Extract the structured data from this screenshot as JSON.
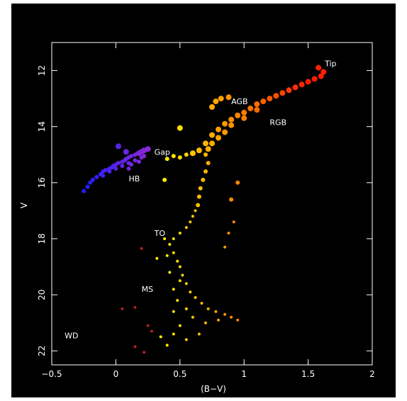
{
  "chart_data": {
    "type": "scatter",
    "title": "",
    "xlabel": "(B−V)",
    "ylabel": "V",
    "xlim": [
      -0.5,
      2
    ],
    "ylim": [
      22.5,
      11
    ],
    "y_inverted": true,
    "x_ticks": [
      "−0.5",
      "0",
      "0.5",
      "1",
      "1.5",
      "2"
    ],
    "x_tick_values": [
      -0.5,
      0,
      0.5,
      1,
      1.5,
      2
    ],
    "y_ticks": [
      "12",
      "14",
      "16",
      "18",
      "20",
      "22"
    ],
    "y_tick_values": [
      12,
      14,
      16,
      18,
      20,
      22
    ],
    "grid": false,
    "colors": {
      "background": "#000000",
      "axes": "#ffffff",
      "text": "#ffffff",
      "color_scale": [
        "#1a1aff",
        "#8a2be2",
        "#ffff00",
        "#ffa500",
        "#ff2000"
      ]
    },
    "annotations": [
      {
        "text": "Tip",
        "x": 1.63,
        "y": 11.85
      },
      {
        "text": "AGB",
        "x": 0.9,
        "y": 13.2
      },
      {
        "text": "RGB",
        "x": 1.2,
        "y": 13.95
      },
      {
        "text": "Gap",
        "x": 0.3,
        "y": 15.0
      },
      {
        "text": "HB",
        "x": 0.1,
        "y": 15.95
      },
      {
        "text": "TO",
        "x": 0.3,
        "y": 17.9
      },
      {
        "text": "MS",
        "x": 0.2,
        "y": 19.9
      },
      {
        "text": "WD",
        "x": -0.4,
        "y": 21.55
      }
    ],
    "series": [
      {
        "points": [
          [
            -0.25,
            16.3
          ],
          [
            -0.2,
            16.0
          ],
          [
            -0.22,
            16.15
          ],
          [
            -0.18,
            15.9
          ],
          [
            -0.15,
            15.8
          ],
          [
            -0.12,
            15.7
          ],
          [
            -0.1,
            15.6
          ],
          [
            -0.08,
            15.55
          ],
          [
            -0.05,
            15.5
          ],
          [
            -0.02,
            15.4
          ],
          [
            0.0,
            15.35
          ],
          [
            0.02,
            15.3
          ],
          [
            0.05,
            15.25
          ],
          [
            0.07,
            15.2
          ],
          [
            0.1,
            15.1
          ],
          [
            0.12,
            15.05
          ],
          [
            0.15,
            15.0
          ],
          [
            0.18,
            14.95
          ],
          [
            0.2,
            14.9
          ],
          [
            0.22,
            14.85
          ],
          [
            0.25,
            14.8
          ],
          [
            0.05,
            15.4
          ],
          [
            0.0,
            15.5
          ],
          [
            -0.05,
            15.6
          ],
          [
            0.1,
            15.3
          ],
          [
            0.15,
            15.2
          ],
          [
            0.2,
            15.1
          ],
          [
            0.08,
            15.15
          ],
          [
            0.12,
            15.35
          ],
          [
            -0.1,
            15.75
          ],
          [
            0.02,
            14.7
          ],
          [
            0.1,
            15.5
          ],
          [
            0.18,
            15.25
          ],
          [
            -0.03,
            15.45
          ],
          [
            0.22,
            15.05
          ],
          [
            0.08,
            14.9
          ],
          [
            0.45,
            15.05
          ],
          [
            0.5,
            15.1
          ],
          [
            0.55,
            15.0
          ],
          [
            0.4,
            15.15
          ],
          [
            0.6,
            14.95
          ],
          [
            0.65,
            14.85
          ],
          [
            0.5,
            14.05
          ],
          [
            0.38,
            15.9
          ],
          [
            0.7,
            14.6
          ],
          [
            0.75,
            14.3
          ],
          [
            0.8,
            14.1
          ],
          [
            0.85,
            13.9
          ],
          [
            0.9,
            13.75
          ],
          [
            0.95,
            13.6
          ],
          [
            1.0,
            13.5
          ],
          [
            1.05,
            13.35
          ],
          [
            1.1,
            13.2
          ],
          [
            1.15,
            13.1
          ],
          [
            1.2,
            13.0
          ],
          [
            1.25,
            12.9
          ],
          [
            1.3,
            12.8
          ],
          [
            1.35,
            12.7
          ],
          [
            1.4,
            12.6
          ],
          [
            1.45,
            12.5
          ],
          [
            1.5,
            12.4
          ],
          [
            1.55,
            12.3
          ],
          [
            1.6,
            12.2
          ],
          [
            1.62,
            12.05
          ],
          [
            1.58,
            11.9
          ],
          [
            1.1,
            13.4
          ],
          [
            1.0,
            13.7
          ],
          [
            0.9,
            13.95
          ],
          [
            0.85,
            14.2
          ],
          [
            0.8,
            14.4
          ],
          [
            0.75,
            14.6
          ],
          [
            0.72,
            14.8
          ],
          [
            0.7,
            15.0
          ],
          [
            0.75,
            13.3
          ],
          [
            0.78,
            13.1
          ],
          [
            0.82,
            13.0
          ],
          [
            0.88,
            12.95
          ],
          [
            0.72,
            15.3
          ],
          [
            0.7,
            15.6
          ],
          [
            0.68,
            15.9
          ],
          [
            0.66,
            16.2
          ],
          [
            0.65,
            16.5
          ],
          [
            0.64,
            16.8
          ],
          [
            0.62,
            17.0
          ],
          [
            0.6,
            17.2
          ],
          [
            0.58,
            17.4
          ],
          [
            0.55,
            17.6
          ],
          [
            0.5,
            17.8
          ],
          [
            0.45,
            18.0
          ],
          [
            0.42,
            18.2
          ],
          [
            0.45,
            18.5
          ],
          [
            0.48,
            18.8
          ],
          [
            0.5,
            19.0
          ],
          [
            0.52,
            19.3
          ],
          [
            0.55,
            19.6
          ],
          [
            0.58,
            19.9
          ],
          [
            0.62,
            20.1
          ],
          [
            0.67,
            20.3
          ],
          [
            0.72,
            20.5
          ],
          [
            0.78,
            20.6
          ],
          [
            0.85,
            20.7
          ],
          [
            0.9,
            20.8
          ],
          [
            0.5,
            19.5
          ],
          [
            0.45,
            19.8
          ],
          [
            0.48,
            20.2
          ],
          [
            0.55,
            20.5
          ],
          [
            0.6,
            20.8
          ],
          [
            0.5,
            21.1
          ],
          [
            0.45,
            21.4
          ],
          [
            0.55,
            21.6
          ],
          [
            0.65,
            21.4
          ],
          [
            0.7,
            21.0
          ],
          [
            0.8,
            20.9
          ],
          [
            0.95,
            20.9
          ],
          [
            0.4,
            21.8
          ],
          [
            0.35,
            21.5
          ],
          [
            0.45,
            20.6
          ],
          [
            0.42,
            19.2
          ],
          [
            0.4,
            18.6
          ],
          [
            0.38,
            18.0
          ],
          [
            0.92,
            17.4
          ],
          [
            0.9,
            16.6
          ],
          [
            0.95,
            16.0
          ],
          [
            0.88,
            17.8
          ],
          [
            0.85,
            18.3
          ],
          [
            0.2,
            18.35
          ],
          [
            0.32,
            18.7
          ],
          [
            0.15,
            20.45
          ],
          [
            0.05,
            20.5
          ],
          [
            0.25,
            21.1
          ],
          [
            0.28,
            21.3
          ],
          [
            0.15,
            21.85
          ],
          [
            0.22,
            22.05
          ]
        ]
      }
    ]
  }
}
